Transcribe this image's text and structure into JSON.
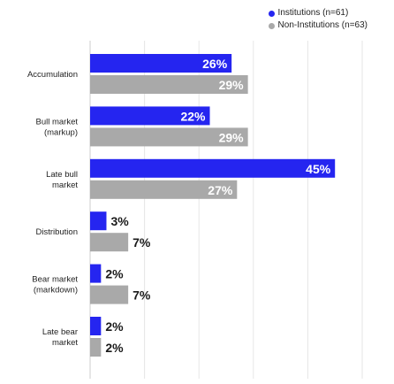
{
  "chart_data": {
    "type": "bar",
    "orientation": "horizontal",
    "categories": [
      "Accumulation",
      "Bull market (markup)",
      "Late bull market",
      "Distribution",
      "Bear market (markdown)",
      "Late bear market"
    ],
    "category_lines": [
      [
        "Accumulation"
      ],
      [
        "Bull market",
        "(markup)"
      ],
      [
        "Late bull",
        "market"
      ],
      [
        "Distribution"
      ],
      [
        "Bear market",
        "(markdown)"
      ],
      [
        "Late bear",
        "market"
      ]
    ],
    "series": [
      {
        "name": "Institutions (n=61)",
        "color": "#2525f0",
        "values": [
          26,
          22,
          45,
          3,
          2,
          2
        ]
      },
      {
        "name": "Non-Institutions (n=63)",
        "color": "#a9a9a9",
        "values": [
          29,
          29,
          27,
          7,
          7,
          2
        ]
      }
    ],
    "value_suffix": "%",
    "xlim": [
      0,
      50
    ],
    "grid": true,
    "legend_position": "top-right"
  }
}
